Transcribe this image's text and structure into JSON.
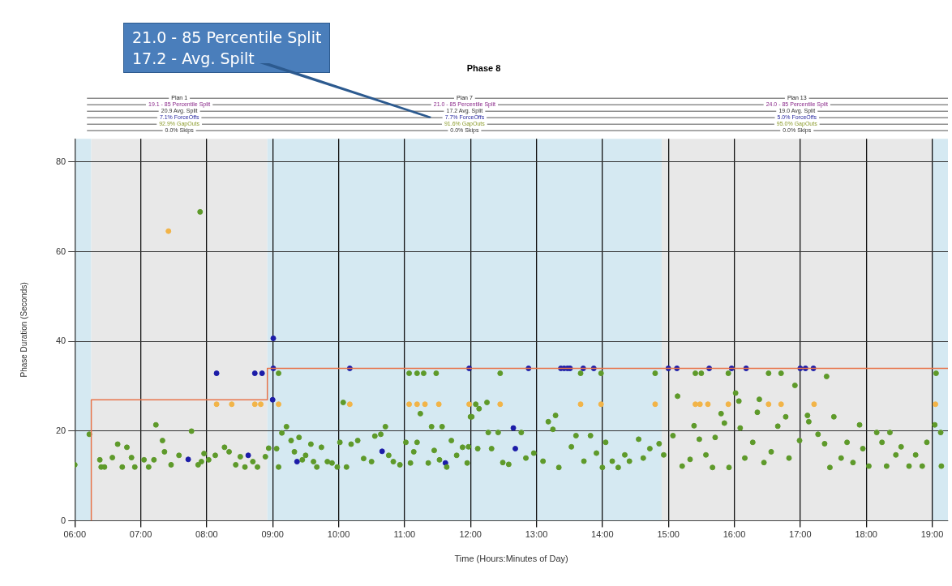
{
  "chart_data": {
    "type": "scatter",
    "title": "Phase 8",
    "xlabel": "Time (Hours:Minutes of Day)",
    "ylabel": "Phase Duration (Seconds)",
    "xlim": [
      6,
      19.24
    ],
    "ylim": [
      0,
      85.2
    ],
    "xticks": [
      {
        "value": 6,
        "label": "06:00"
      },
      {
        "value": 7,
        "label": "07:00"
      },
      {
        "value": 8,
        "label": "08:00"
      },
      {
        "value": 9,
        "label": "09:00"
      },
      {
        "value": 10,
        "label": "10:00"
      },
      {
        "value": 11,
        "label": "11:00"
      },
      {
        "value": 12,
        "label": "12:00"
      },
      {
        "value": 13,
        "label": "13:00"
      },
      {
        "value": 14,
        "label": "14:00"
      },
      {
        "value": 15,
        "label": "15:00"
      },
      {
        "value": 16,
        "label": "16:00"
      },
      {
        "value": 17,
        "label": "17:00"
      },
      {
        "value": 18,
        "label": "18:00"
      },
      {
        "value": 19,
        "label": "19:00"
      }
    ],
    "yticks": [
      0,
      20,
      40,
      60,
      80
    ],
    "grid": true,
    "legend": false,
    "bands": [
      {
        "axis": "x",
        "from": 6,
        "to": 6.25,
        "label": null,
        "color": "#d5e9f2"
      },
      {
        "axis": "x",
        "from": 6.25,
        "to": 8.92,
        "label": null,
        "color": "#e8e8e8"
      },
      {
        "axis": "x",
        "from": 8.92,
        "to": 14.9,
        "label": null,
        "color": "#d5e9f2"
      },
      {
        "axis": "x",
        "from": 14.9,
        "to": 19,
        "label": null,
        "color": "#e8e8e8"
      },
      {
        "axis": "x",
        "from": 19,
        "to": 19.24,
        "label": null,
        "color": "#d5e9f2"
      }
    ],
    "annotations": [
      "21.0 - 85 Percentile Split\n17.2 - Avg. Spilt",
      "Plan 1",
      "19.1 - 85 Percentile Split",
      "20.9 Avg. Split",
      "7.1% ForceOffs",
      "92.9% GapOuts",
      "0.0% Skips",
      "Plan 7",
      "21.0 - 85 Percentile Split",
      "17.2 Avg. Split",
      "7.7% ForceOffs",
      "91.6% GapOuts",
      "0.0% Skips",
      "Plan 13",
      "24.0 - 85 Percentile Split",
      "19.0 Avg. Split",
      "5.0% ForceOffs",
      "95.0% GapOuts",
      "0.0% Skips"
    ],
    "series": [
      {
        "type": "line",
        "color": "#e8744a",
        "x": [
          6.25,
          6.25,
          8.92,
          8.92,
          19.24
        ],
        "values": [
          0,
          27,
          27,
          34,
          34
        ]
      },
      {
        "color": "#5e9a2a",
        "x": [
          6.0,
          6.22,
          6.38,
          6.4,
          6.45,
          6.57,
          6.65,
          6.72,
          6.79,
          6.86,
          6.91,
          7.05,
          7.12,
          7.2,
          7.23,
          7.33,
          7.36,
          7.46,
          7.58,
          7.77,
          7.87,
          7.9,
          7.92,
          7.96,
          8.03,
          8.13,
          8.27,
          8.34,
          8.44,
          8.51,
          8.58,
          8.7,
          8.77,
          8.89,
          8.94,
          9.06,
          9.09,
          9.14,
          9.21,
          9.28,
          9.33,
          9.4,
          9.45,
          9.5,
          9.58,
          9.62,
          9.67,
          9.74,
          9.83,
          9.9,
          9.98,
          10.02,
          10.07,
          10.12,
          10.19,
          10.29,
          10.38,
          10.5,
          10.55,
          10.64,
          10.71,
          10.76,
          10.83,
          10.93,
          11.02,
          11.09,
          11.14,
          11.19,
          11.24,
          11.36,
          11.41,
          11.45,
          11.53,
          11.57,
          11.64,
          11.71,
          11.79,
          11.88,
          11.95,
          12.0,
          9.09,
          11.07,
          11.19,
          11.29,
          11.48,
          12.02,
          12.08,
          12.13,
          12.25,
          11.97,
          12.11,
          12.27,
          12.32,
          12.42,
          12.49,
          12.58,
          12.77,
          12.84,
          12.96,
          13.1,
          13.18,
          13.25,
          13.29,
          13.34,
          13.53,
          13.6,
          13.72,
          13.82,
          13.91,
          14.0,
          14.05,
          14.15,
          14.24,
          14.34,
          14.41,
          14.55,
          14.62,
          14.72,
          14.86,
          14.93,
          15.07,
          15.14,
          15.21,
          15.33,
          15.39,
          15.47,
          15.57,
          15.67,
          15.71,
          15.8,
          15.85,
          15.92,
          16.02,
          16.07,
          16.09,
          16.16,
          16.28,
          16.35,
          16.38,
          16.45,
          16.56,
          16.66,
          16.78,
          16.83,
          16.92,
          16.99,
          17.11,
          17.13,
          17.27,
          17.37,
          17.45,
          17.51,
          17.62,
          17.71,
          17.8,
          17.9,
          17.95,
          18.04,
          18.16,
          18.24,
          18.31,
          18.36,
          18.45,
          18.53,
          18.65,
          18.75,
          18.85,
          18.92,
          19.04,
          19.13,
          19.14,
          12.45,
          13.67,
          13.98,
          14.8,
          15.41,
          15.5,
          15.91,
          16.52,
          16.71,
          17.4,
          19.06
        ],
        "values": [
          12.5,
          19.3,
          13.6,
          12,
          12,
          14.1,
          17.1,
          12,
          16.4,
          14.1,
          12,
          13.6,
          12,
          13.6,
          21.4,
          17.9,
          15.4,
          12.5,
          14.6,
          20,
          12.5,
          68.9,
          13.2,
          15,
          13.6,
          14.6,
          16.4,
          15.4,
          12.5,
          14.3,
          12,
          13.2,
          12,
          14.3,
          16.2,
          16.1,
          12,
          19.6,
          21,
          17.9,
          15.4,
          18.6,
          13.6,
          14.6,
          17.1,
          13.2,
          12,
          16.4,
          13.2,
          12.9,
          12,
          17.5,
          26.4,
          12,
          17.1,
          17.9,
          13.9,
          13.2,
          18.9,
          19.3,
          21,
          14.6,
          13.2,
          12.5,
          17.5,
          12.9,
          15.4,
          17.5,
          23.9,
          12.9,
          21,
          15.7,
          13.6,
          21,
          12,
          17.9,
          14.6,
          16.4,
          12.9,
          23.2,
          32.9,
          32.9,
          32.9,
          32.9,
          32.9,
          23.2,
          26,
          25,
          26.4,
          16.5,
          16.1,
          19.7,
          16.1,
          19.7,
          13,
          12.6,
          19.7,
          14,
          15.1,
          13.3,
          22.1,
          20.4,
          23.5,
          11.9,
          16.5,
          19,
          13.3,
          19,
          15.1,
          11.9,
          17.5,
          13.3,
          11.9,
          14.7,
          13.3,
          18.2,
          14,
          16.1,
          17.2,
          14.7,
          19,
          27.8,
          12.2,
          13.7,
          21.2,
          18.2,
          14.7,
          11.9,
          18.6,
          23.9,
          21.8,
          11.9,
          28.5,
          26.7,
          20.7,
          14,
          17.5,
          24.2,
          27.1,
          13,
          15.4,
          21.1,
          23.2,
          14,
          30.2,
          17.9,
          23.5,
          22.1,
          19.3,
          17.2,
          11.9,
          23.2,
          14,
          17.5,
          13,
          21.4,
          16.1,
          12.2,
          19.7,
          17.5,
          12.2,
          19.7,
          14.7,
          16.5,
          12.2,
          14.7,
          12.2,
          17.5,
          21.4,
          19.7,
          12.2,
          32.9,
          32.9,
          32.9,
          32.9,
          32.9,
          32.9,
          32.9,
          32.9,
          32.9,
          32.2,
          32.9
        ]
      },
      {
        "color": "#f2b448",
        "x": [
          7.42,
          8.15,
          8.38,
          8.73,
          8.82,
          9.09,
          10.17,
          11.07,
          11.19,
          11.31,
          11.52,
          11.98,
          12.45,
          13.67,
          13.98,
          14.8,
          15.41,
          15.48,
          15.6,
          15.91,
          16.52,
          16.71,
          17.21,
          19.05
        ],
        "values": [
          64.6,
          26,
          26,
          26,
          26,
          26,
          26,
          26,
          26,
          26,
          26,
          26,
          26,
          26,
          26,
          26,
          26,
          26,
          26,
          26,
          26,
          26,
          26,
          26
        ]
      },
      {
        "color": "#1c1ca8",
        "x": [
          8.15,
          8.73,
          8.84,
          9.01,
          9.0,
          9.01,
          10.17,
          11.98,
          12.88,
          13.37,
          13.42,
          13.47,
          13.51,
          13.71,
          13.87,
          15.0,
          15.13,
          15.62,
          15.96,
          16.18,
          17.0,
          17.08,
          17.2,
          7.72,
          8.63,
          9.37,
          10.66,
          11.62,
          12.65,
          12.68
        ],
        "values": [
          32.9,
          32.9,
          32.9,
          34,
          27,
          40.7,
          34,
          34,
          34,
          34,
          34,
          34,
          34,
          34,
          34,
          34,
          34,
          34,
          34,
          34,
          34,
          34,
          34,
          13.7,
          14.6,
          13.2,
          15.5,
          12.9,
          20.7,
          16.1
        ]
      }
    ]
  }
}
